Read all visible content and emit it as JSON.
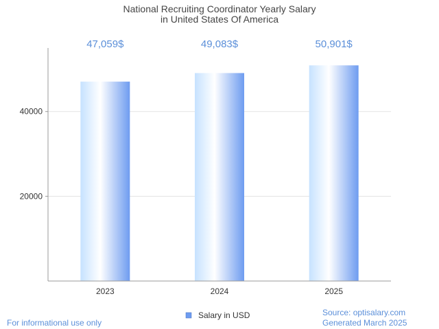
{
  "chart_data": {
    "type": "bar",
    "title": [
      "National Recruiting Coordinator Yearly Salary",
      "in United States Of America"
    ],
    "categories": [
      "2023",
      "2024",
      "2025"
    ],
    "series": [
      {
        "name": "Salary in USD",
        "values": [
          47059,
          49083,
          50901
        ]
      }
    ],
    "data_labels": [
      "47,059$",
      "49,083$",
      "50,901$"
    ],
    "ylim": [
      0,
      55000
    ],
    "yticks": [
      20000,
      40000
    ],
    "ytick_labels": [
      "20000",
      "40000"
    ],
    "grid": true,
    "legend_position": "bottom-center"
  },
  "footer": {
    "left": "For informational use only",
    "source": "Source: optisalary.com",
    "generated": "Generated March 2025"
  },
  "colors": {
    "bar_light": "#ffffff",
    "bar_mid": "#c6e2ff",
    "bar_dark": "#6e9cf0",
    "grid": "#e3e3e3",
    "axis": "#999999",
    "accent": "#5b8fd9",
    "legend_swatch": "#6e9cf0"
  }
}
